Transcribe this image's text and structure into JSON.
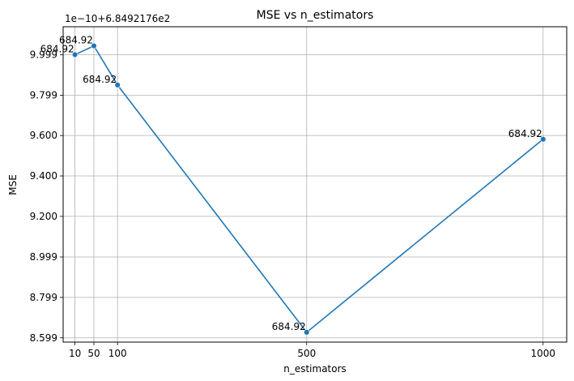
{
  "chart_data": {
    "type": "line",
    "title": "MSE vs n_estimators",
    "xlabel": "n_estimators",
    "ylabel": "MSE",
    "offset_label": "1e−10+6.8492176e2",
    "x": [
      10,
      50,
      100,
      500,
      1000
    ],
    "y_offset_units": [
      9.9999,
      10.0433,
      9.8498,
      8.6265,
      9.5815
    ],
    "point_labels": [
      "684.92",
      "684.92",
      "684.92",
      "684.92",
      "684.92"
    ],
    "x_ticks": [
      10,
      50,
      100,
      500,
      1000
    ],
    "x_tick_labels": [
      "10",
      "50",
      "100",
      "500",
      "1000"
    ],
    "y_ticks": [
      8.599,
      8.799,
      8.999,
      9.2,
      9.4,
      9.6,
      9.799,
      9.999
    ],
    "y_tick_labels": [
      "8.599",
      "8.799",
      "8.999",
      "9.200",
      "9.400",
      "9.600",
      "9.799",
      "9.999"
    ],
    "xlim": [
      -15,
      1050
    ],
    "ylim": [
      8.578,
      10.138
    ],
    "grid": true,
    "line_color": "#1f77b4",
    "marker": "circle"
  }
}
